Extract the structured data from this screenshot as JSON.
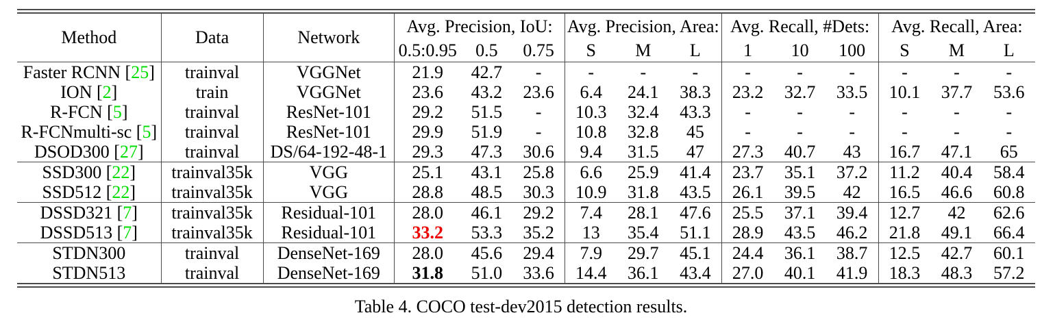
{
  "caption": "Table 4. COCO test-dev2015 detection results.",
  "colors": {
    "citation": "#00dd00",
    "highlight_red": "#ee0000",
    "rule": "#4a4a4a"
  },
  "table": {
    "columns": {
      "method": "Method",
      "data": "Data",
      "network": "Network"
    },
    "groups": [
      {
        "label": "Avg. Precision, IoU:",
        "sub": [
          "0.5:0.95",
          "0.5",
          "0.75"
        ]
      },
      {
        "label": "Avg. Precision, Area:",
        "sub": [
          "S",
          "M",
          "L"
        ]
      },
      {
        "label": "Avg. Recall, #Dets:",
        "sub": [
          "1",
          "10",
          "100"
        ]
      },
      {
        "label": "Avg. Recall, Area:",
        "sub": [
          "S",
          "M",
          "L"
        ]
      }
    ],
    "row_groups": [
      {
        "rows": [
          {
            "method": "Faster RCNN",
            "cite": "25",
            "data": "trainval",
            "network": "VGGNet",
            "values": [
              "21.9",
              "42.7",
              "-",
              "-",
              "-",
              "-",
              "-",
              "-",
              "-",
              "-",
              "-",
              "-"
            ]
          },
          {
            "method": "ION",
            "cite": "2",
            "data": "train",
            "network": "VGGNet",
            "values": [
              "23.6",
              "43.2",
              "23.6",
              "6.4",
              "24.1",
              "38.3",
              "23.2",
              "32.7",
              "33.5",
              "10.1",
              "37.7",
              "53.6"
            ]
          },
          {
            "method": "R-FCN",
            "cite": "5",
            "data": "trainval",
            "network": "ResNet-101",
            "values": [
              "29.2",
              "51.5",
              "-",
              "10.3",
              "32.4",
              "43.3",
              "-",
              "-",
              "-",
              "-",
              "-",
              "-"
            ]
          },
          {
            "method": "R-FCNmulti-sc",
            "cite": "5",
            "data": "trainval",
            "network": "ResNet-101",
            "values": [
              "29.9",
              "51.9",
              "-",
              "10.8",
              "32.8",
              "45",
              "-",
              "-",
              "-",
              "-",
              "-",
              "-"
            ]
          },
          {
            "method": "DSOD300",
            "cite": "27",
            "data": "trainval",
            "network": "DS/64-192-48-1",
            "values": [
              "29.3",
              "47.3",
              "30.6",
              "9.4",
              "31.5",
              "47",
              "27.3",
              "40.7",
              "43",
              "16.7",
              "47.1",
              "65"
            ]
          }
        ]
      },
      {
        "rows": [
          {
            "method": "SSD300",
            "cite": "22",
            "data": "trainval35k",
            "network": "VGG",
            "values": [
              "25.1",
              "43.1",
              "25.8",
              "6.6",
              "25.9",
              "41.4",
              "23.7",
              "35.1",
              "37.2",
              "11.2",
              "40.4",
              "58.4"
            ]
          },
          {
            "method": "SSD512",
            "cite": "22",
            "data": "trainval35k",
            "network": "VGG",
            "values": [
              "28.8",
              "48.5",
              "30.3",
              "10.9",
              "31.8",
              "43.5",
              "26.1",
              "39.5",
              "42",
              "16.5",
              "46.6",
              "60.8"
            ]
          }
        ]
      },
      {
        "rows": [
          {
            "method": "DSSD321",
            "cite": "7",
            "data": "trainval35k",
            "network": "Residual-101",
            "values": [
              "28.0",
              "46.1",
              "29.2",
              "7.4",
              "28.1",
              "47.6",
              "25.5",
              "37.1",
              "39.4",
              "12.7",
              "42",
              "62.6"
            ]
          },
          {
            "method": "DSSD513",
            "cite": "7",
            "data": "trainval35k",
            "network": "Residual-101",
            "values": [
              "33.2",
              "53.3",
              "35.2",
              "13",
              "35.4",
              "51.1",
              "28.9",
              "43.5",
              "46.2",
              "21.8",
              "49.1",
              "66.4"
            ],
            "highlight": {
              "col": 0,
              "style": "red"
            }
          }
        ]
      },
      {
        "rows": [
          {
            "method": "STDN300",
            "cite": null,
            "data": "trainval",
            "network": "DenseNet-169",
            "values": [
              "28.0",
              "45.6",
              "29.4",
              "7.9",
              "29.7",
              "45.1",
              "24.4",
              "36.1",
              "38.7",
              "12.5",
              "42.7",
              "60.1"
            ]
          },
          {
            "method": "STDN513",
            "cite": null,
            "data": "trainval",
            "network": "DenseNet-169",
            "values": [
              "31.8",
              "51.0",
              "33.6",
              "14.4",
              "36.1",
              "43.4",
              "27.0",
              "40.1",
              "41.9",
              "18.3",
              "48.3",
              "57.2"
            ],
            "highlight": {
              "col": 0,
              "style": "bold"
            }
          }
        ]
      }
    ]
  }
}
